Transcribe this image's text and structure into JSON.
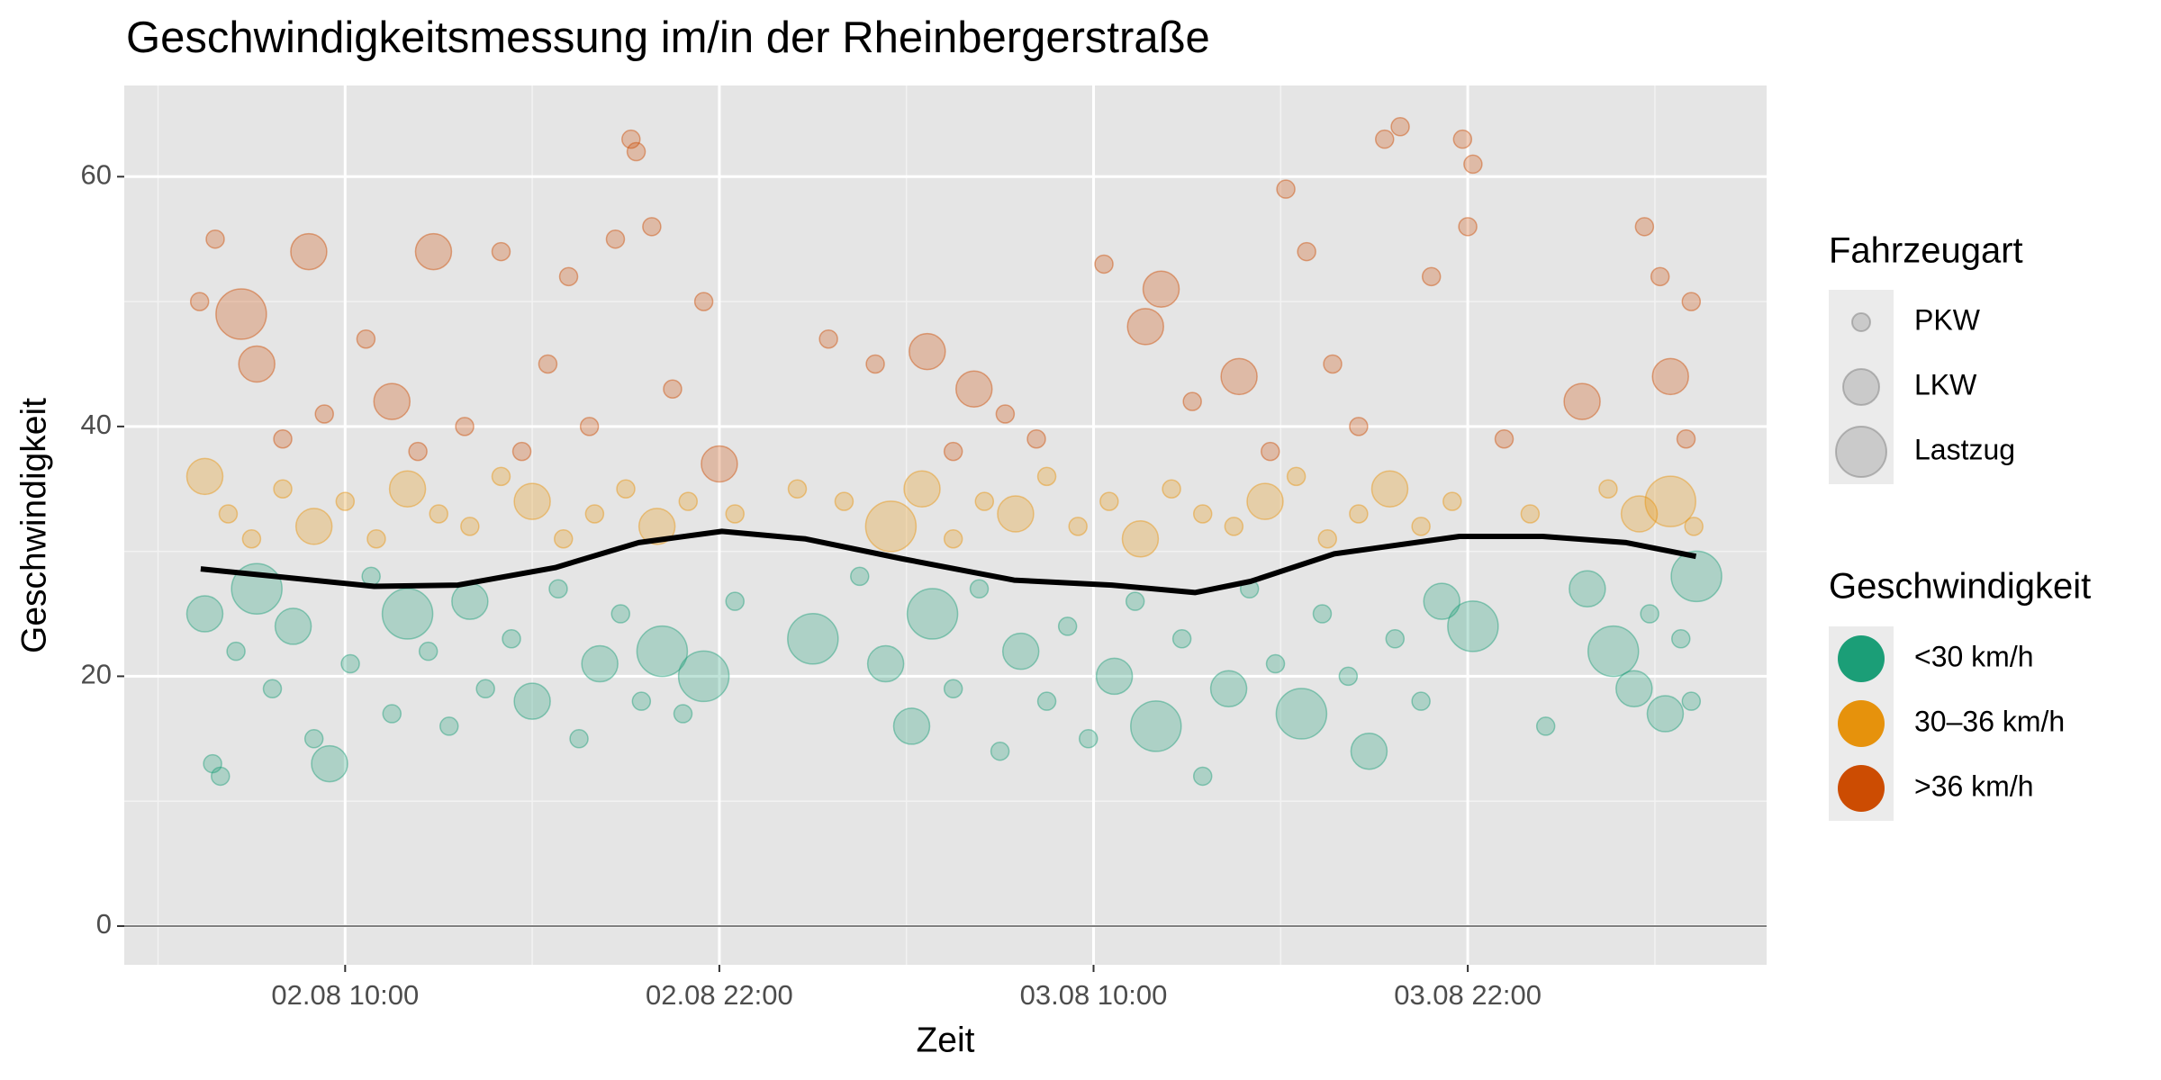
{
  "chart_data": {
    "type": "scatter",
    "title": "Geschwindigkeitsmessung im/in der Rheinbergerstraße",
    "x_label": "Zeit",
    "y_label": "Geschwindigkeit",
    "xlim": [
      "02.08 02:55",
      "04.08 07:35"
    ],
    "xticks": [
      "02.08 10:00",
      "02.08 22:00",
      "03.08 10:00",
      "03.08 22:00"
    ],
    "ylim": [
      -3.1,
      67.3
    ],
    "yticks": [
      0,
      20,
      40,
      60
    ],
    "reference_line": 0,
    "grid": true,
    "legend_position": "right",
    "legend_title": "Geschwindigkeit",
    "size_legend": {
      "title": "Fahrzeugart",
      "labels": [
        "PKW",
        "LKW",
        "Lastzug"
      ]
    },
    "series": [
      {
        "name": "<30 km/h",
        "color": "#1b9e77",
        "x": [
          "02.08 05:30",
          "02.08 05:45",
          "02.08 06:00",
          "02.08 06:30",
          "02.08 07:10",
          "02.08 07:40",
          "02.08 08:20",
          "02.08 09:00",
          "02.08 09:30",
          "02.08 10:10",
          "02.08 10:50",
          "02.08 11:30",
          "02.08 12:00",
          "02.08 12:40",
          "02.08 13:20",
          "02.08 14:00",
          "02.08 14:30",
          "02.08 15:20",
          "02.08 16:00",
          "02.08 16:50",
          "02.08 17:30",
          "02.08 18:10",
          "02.08 18:50",
          "02.08 19:30",
          "02.08 20:10",
          "02.08 20:50",
          "02.08 21:30",
          "02.08 22:30",
          "03.08 01:00",
          "03.08 02:30",
          "03.08 03:20",
          "03.08 04:10",
          "03.08 04:50",
          "03.08 05:30",
          "03.08 06:20",
          "03.08 07:00",
          "03.08 07:40",
          "03.08 08:30",
          "03.08 09:10",
          "03.08 09:50",
          "03.08 10:40",
          "03.08 11:20",
          "03.08 12:00",
          "03.08 12:50",
          "03.08 13:30",
          "03.08 14:20",
          "03.08 15:00",
          "03.08 15:50",
          "03.08 16:40",
          "03.08 17:20",
          "03.08 18:10",
          "03.08 18:50",
          "03.08 19:40",
          "03.08 20:30",
          "03.08 21:10",
          "03.08 22:10",
          "04.08 00:30",
          "04.08 01:50",
          "04.08 02:40",
          "04.08 03:20",
          "04.08 03:50",
          "04.08 04:20",
          "04.08 04:50",
          "04.08 05:10",
          "04.08 05:20"
        ],
        "values": [
          25,
          13,
          12,
          22,
          27,
          19,
          24,
          15,
          13,
          21,
          28,
          17,
          25,
          22,
          16,
          26,
          19,
          23,
          18,
          27,
          15,
          21,
          25,
          18,
          22,
          17,
          20,
          26,
          23,
          28,
          21,
          16,
          25,
          19,
          27,
          14,
          22,
          18,
          24,
          15,
          20,
          26,
          16,
          23,
          12,
          19,
          27,
          21,
          17,
          25,
          20,
          14,
          23,
          18,
          26,
          24,
          16,
          27,
          22,
          19,
          25,
          17,
          23,
          18,
          28
        ],
        "vehicle": [
          "LKW",
          "PKW",
          "PKW",
          "PKW",
          "Lastzug",
          "PKW",
          "LKW",
          "PKW",
          "LKW",
          "PKW",
          "PKW",
          "PKW",
          "Lastzug",
          "PKW",
          "PKW",
          "LKW",
          "PKW",
          "PKW",
          "LKW",
          "PKW",
          "PKW",
          "LKW",
          "PKW",
          "PKW",
          "Lastzug",
          "PKW",
          "Lastzug",
          "PKW",
          "Lastzug",
          "PKW",
          "LKW",
          "LKW",
          "Lastzug",
          "PKW",
          "PKW",
          "PKW",
          "LKW",
          "PKW",
          "PKW",
          "PKW",
          "LKW",
          "PKW",
          "Lastzug",
          "PKW",
          "PKW",
          "LKW",
          "PKW",
          "PKW",
          "Lastzug",
          "PKW",
          "PKW",
          "LKW",
          "PKW",
          "PKW",
          "LKW",
          "Lastzug",
          "PKW",
          "LKW",
          "Lastzug",
          "LKW",
          "PKW",
          "LKW",
          "PKW",
          "PKW",
          "Lastzug"
        ]
      },
      {
        "name": "30–36 km/h",
        "color": "#e6920c",
        "x": [
          "02.08 05:30",
          "02.08 06:15",
          "02.08 07:00",
          "02.08 08:00",
          "02.08 09:00",
          "02.08 10:00",
          "02.08 11:00",
          "02.08 12:00",
          "02.08 13:00",
          "02.08 14:00",
          "02.08 15:00",
          "02.08 16:00",
          "02.08 17:00",
          "02.08 18:00",
          "02.08 19:00",
          "02.08 20:00",
          "02.08 21:00",
          "02.08 22:30",
          "03.08 00:30",
          "03.08 02:00",
          "03.08 03:30",
          "03.08 04:30",
          "03.08 05:30",
          "03.08 06:30",
          "03.08 07:30",
          "03.08 08:30",
          "03.08 09:30",
          "03.08 10:30",
          "03.08 11:30",
          "03.08 12:30",
          "03.08 13:30",
          "03.08 14:30",
          "03.08 15:30",
          "03.08 16:30",
          "03.08 17:30",
          "03.08 18:30",
          "03.08 19:30",
          "03.08 20:30",
          "03.08 21:30",
          "04.08 00:00",
          "04.08 02:30",
          "04.08 03:30",
          "04.08 04:30",
          "04.08 05:15"
        ],
        "values": [
          36,
          33,
          31,
          35,
          32,
          34,
          31,
          35,
          33,
          32,
          36,
          34,
          31,
          33,
          35,
          32,
          34,
          33,
          35,
          34,
          32,
          35,
          31,
          34,
          33,
          36,
          32,
          34,
          31,
          35,
          33,
          32,
          34,
          36,
          31,
          33,
          35,
          32,
          34,
          33,
          35,
          33,
          34,
          32
        ],
        "vehicle": [
          "LKW",
          "PKW",
          "PKW",
          "PKW",
          "LKW",
          "PKW",
          "PKW",
          "LKW",
          "PKW",
          "PKW",
          "PKW",
          "LKW",
          "PKW",
          "PKW",
          "PKW",
          "LKW",
          "PKW",
          "PKW",
          "PKW",
          "PKW",
          "Lastzug",
          "LKW",
          "PKW",
          "PKW",
          "LKW",
          "PKW",
          "PKW",
          "PKW",
          "LKW",
          "PKW",
          "PKW",
          "PKW",
          "LKW",
          "PKW",
          "PKW",
          "PKW",
          "LKW",
          "PKW",
          "PKW",
          "PKW",
          "PKW",
          "LKW",
          "Lastzug",
          "PKW"
        ]
      },
      {
        "name": ">36 km/h",
        "color": "#cc4c02",
        "x": [
          "02.08 05:20",
          "02.08 05:50",
          "02.08 06:40",
          "02.08 07:10",
          "02.08 08:00",
          "02.08 08:50",
          "02.08 09:20",
          "02.08 10:40",
          "02.08 11:30",
          "02.08 12:20",
          "02.08 12:50",
          "02.08 13:50",
          "02.08 15:00",
          "02.08 15:40",
          "02.08 16:30",
          "02.08 17:10",
          "02.08 17:50",
          "02.08 18:40",
          "02.08 19:10",
          "02.08 19:20",
          "02.08 19:50",
          "02.08 20:30",
          "02.08 21:30",
          "02.08 22:00",
          "03.08 01:30",
          "03.08 03:00",
          "03.08 04:40",
          "03.08 05:30",
          "03.08 06:10",
          "03.08 07:10",
          "03.08 08:10",
          "03.08 10:20",
          "03.08 11:40",
          "03.08 12:10",
          "03.08 13:10",
          "03.08 14:40",
          "03.08 15:40",
          "03.08 16:10",
          "03.08 16:50",
          "03.08 17:40",
          "03.08 18:30",
          "03.08 19:20",
          "03.08 19:50",
          "03.08 20:50",
          "03.08 21:50",
          "03.08 22:10",
          "03.08 22:00",
          "03.08 23:10",
          "04.08 01:40",
          "04.08 03:40",
          "04.08 04:10",
          "04.08 04:30",
          "04.08 05:00",
          "04.08 05:10"
        ],
        "values": [
          50,
          55,
          49,
          45,
          39,
          54,
          41,
          47,
          42,
          38,
          54,
          40,
          54,
          38,
          45,
          52,
          40,
          55,
          63,
          62,
          56,
          43,
          50,
          37,
          47,
          45,
          46,
          38,
          43,
          41,
          39,
          53,
          48,
          51,
          42,
          44,
          38,
          59,
          54,
          45,
          40,
          63,
          64,
          52,
          63,
          61,
          56,
          39,
          42,
          56,
          52,
          44,
          39,
          50
        ],
        "vehicle": [
          "PKW",
          "PKW",
          "Lastzug",
          "LKW",
          "PKW",
          "LKW",
          "PKW",
          "PKW",
          "LKW",
          "PKW",
          "LKW",
          "PKW",
          "PKW",
          "PKW",
          "PKW",
          "PKW",
          "PKW",
          "PKW",
          "PKW",
          "PKW",
          "PKW",
          "PKW",
          "PKW",
          "LKW",
          "PKW",
          "PKW",
          "LKW",
          "PKW",
          "LKW",
          "PKW",
          "PKW",
          "PKW",
          "LKW",
          "LKW",
          "PKW",
          "LKW",
          "PKW",
          "PKW",
          "PKW",
          "PKW",
          "PKW",
          "PKW",
          "PKW",
          "PKW",
          "PKW",
          "PKW",
          "PKW",
          "PKW",
          "LKW",
          "PKW",
          "PKW",
          "LKW",
          "PKW",
          "PKW"
        ]
      }
    ],
    "trend": {
      "color": "#000000",
      "x": [
        "02.08 05:22",
        "02.08 10:56",
        "02.08 13:37",
        "02.08 16:44",
        "02.08 19:25",
        "02.08 22:05",
        "03.08 00:46",
        "03.08 03:53",
        "03.08 07:27",
        "03.08 10:35",
        "03.08 13:15",
        "03.08 15:02",
        "03.08 17:43",
        "03.08 21:44",
        "04.08 00:24",
        "04.08 03:05",
        "04.08 05:19"
      ],
      "values": [
        28.6,
        27.2,
        27.3,
        28.7,
        30.7,
        31.6,
        31.0,
        29.4,
        27.7,
        27.3,
        26.7,
        27.6,
        29.8,
        31.2,
        31.2,
        30.7,
        29.6
      ]
    }
  }
}
